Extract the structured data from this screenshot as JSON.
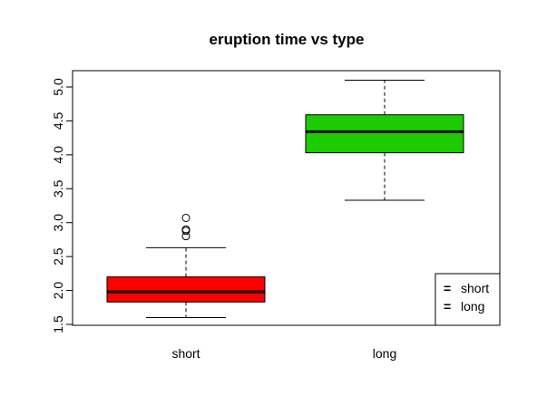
{
  "chart_data": {
    "type": "boxplot",
    "title": "eruption time vs type",
    "xlabel": "",
    "ylabel": "",
    "ylim": [
      1.5,
      5.0
    ],
    "yticks": [
      "1.5",
      "2.0",
      "2.5",
      "3.0",
      "3.5",
      "4.0",
      "4.5",
      "5.0"
    ],
    "categories": [
      "short",
      "long"
    ],
    "boxes": [
      {
        "name": "short",
        "color": "#ff0000",
        "whisker_low": 1.6,
        "q1": 1.83,
        "median": 1.98,
        "q3": 2.2,
        "whisker_high": 2.63,
        "outliers": [
          3.07,
          2.9,
          2.88,
          2.8
        ]
      },
      {
        "name": "long",
        "color": "#1ccc00",
        "whisker_low": 3.33,
        "q1": 4.03,
        "median": 4.34,
        "q3": 4.59,
        "whisker_high": 5.1,
        "outliers": []
      }
    ],
    "legend": {
      "position": "bottom-right",
      "entries": [
        {
          "label": "short",
          "color": "#ff0000"
        },
        {
          "label": "long",
          "color": "#1ccc00"
        }
      ]
    },
    "grid": false
  }
}
